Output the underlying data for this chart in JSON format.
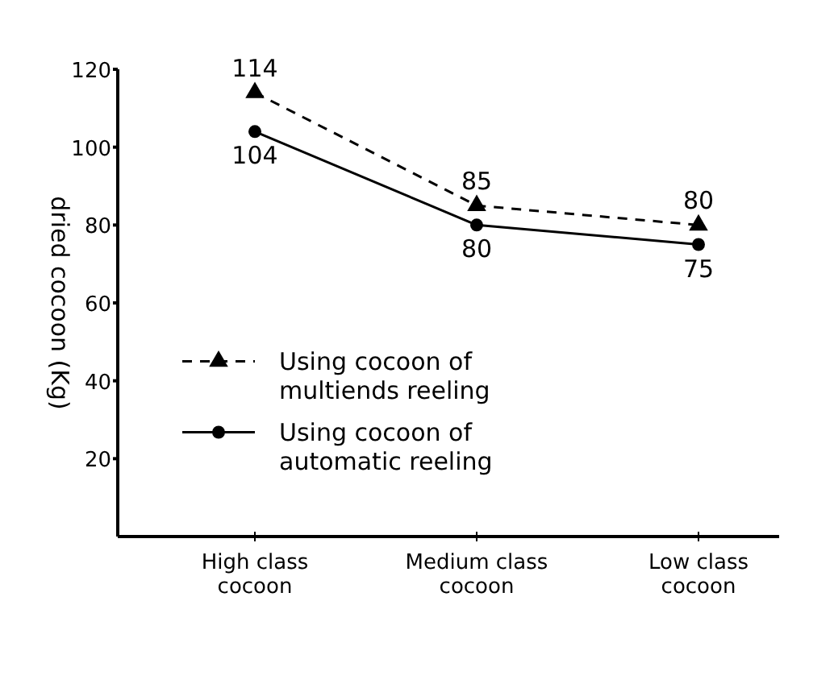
{
  "chart_data": {
    "type": "line",
    "ylabel": "dried cocoon (Kg)",
    "categories": [
      "High class cocoon",
      "Medium class cocoon",
      "Low class cocoon"
    ],
    "series": [
      {
        "name": "Using cocoon of multiends reeling",
        "color": "#000000",
        "values": [
          114,
          85,
          80
        ],
        "marker": "triangle",
        "line_style": "dashed"
      },
      {
        "name": "Using cocoon of automatic reeling",
        "color": "#000000",
        "values": [
          104,
          80,
          75
        ],
        "marker": "circle",
        "line_style": "solid"
      }
    ],
    "data_labels": true,
    "ylim": [
      0,
      120
    ],
    "yticks": [
      20,
      40,
      60,
      80,
      100,
      120
    ],
    "grid": false,
    "legend": "left"
  }
}
